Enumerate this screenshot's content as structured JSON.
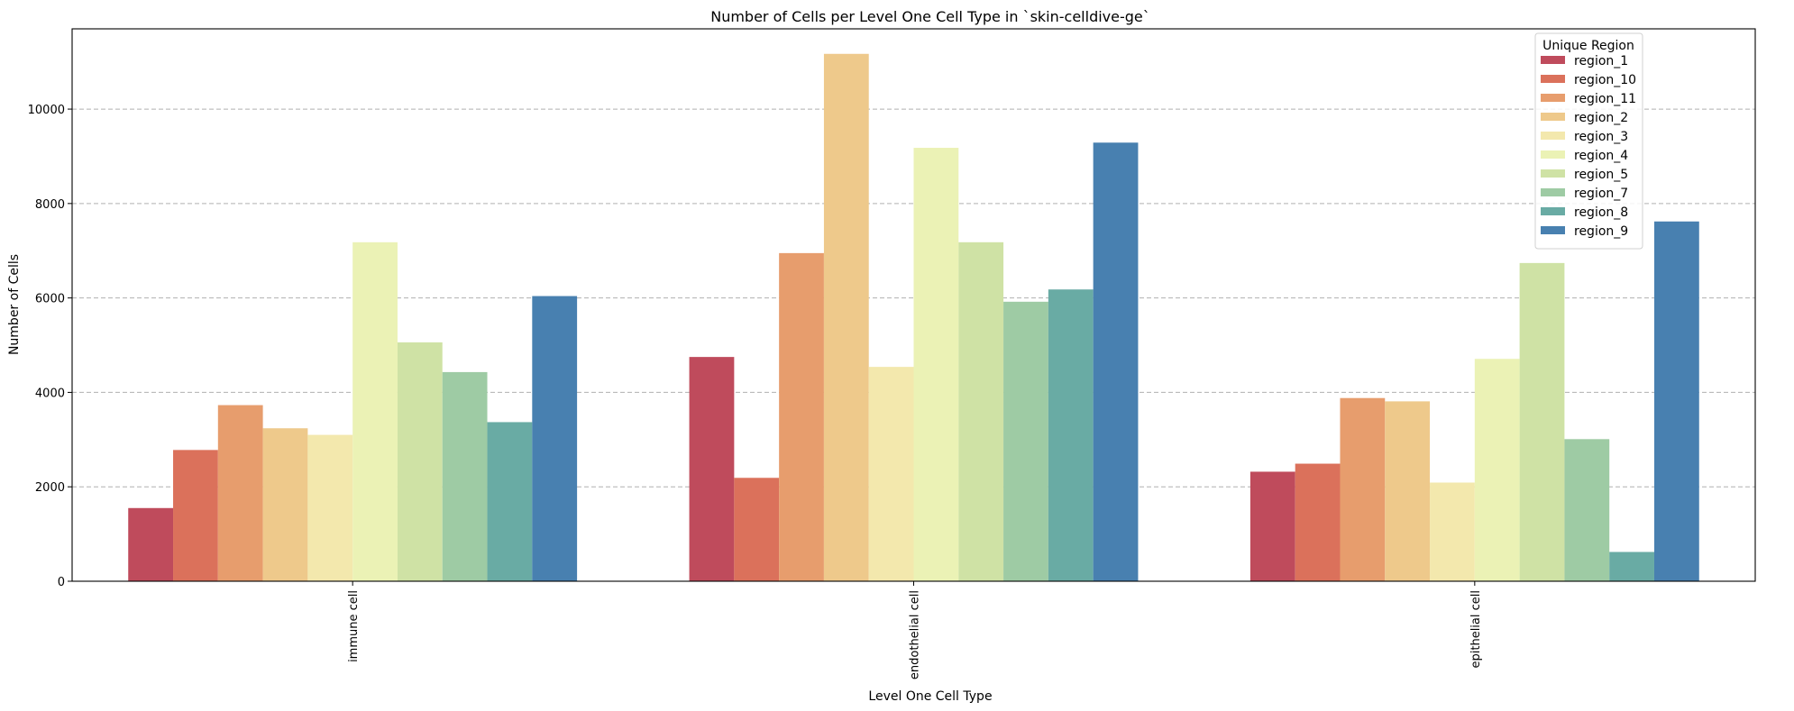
{
  "chart_data": {
    "type": "bar",
    "title": "Number of Cells per Level One Cell Type in `skin-celldive-ge`",
    "xlabel": "Level One Cell Type",
    "ylabel": "Number of Cells",
    "ylim": [
      0,
      11700
    ],
    "yticks": [
      0,
      2000,
      4000,
      6000,
      8000,
      10000
    ],
    "grid": true,
    "legend": {
      "title": "Unique Region",
      "placement": "top-right"
    },
    "categories": [
      "immune cell",
      "endothelial cell",
      "epithelial cell"
    ],
    "series": [
      {
        "name": "region_1",
        "color": "#bf4b5c",
        "values": [
          1550,
          4750,
          2320
        ]
      },
      {
        "name": "region_10",
        "color": "#db715b",
        "values": [
          2780,
          2190,
          2490
        ]
      },
      {
        "name": "region_11",
        "color": "#e79d6d",
        "values": [
          3730,
          6950,
          3880
        ]
      },
      {
        "name": "region_2",
        "color": "#eec98b",
        "values": [
          3240,
          11170,
          3810
        ]
      },
      {
        "name": "region_3",
        "color": "#f3e8ad",
        "values": [
          3100,
          4540,
          2090
        ]
      },
      {
        "name": "region_4",
        "color": "#ebf2b5",
        "values": [
          7180,
          9180,
          4710
        ]
      },
      {
        "name": "region_5",
        "color": "#cfe2a5",
        "values": [
          5060,
          7180,
          6740
        ]
      },
      {
        "name": "region_7",
        "color": "#9ecba4",
        "values": [
          4430,
          5920,
          3010
        ]
      },
      {
        "name": "region_8",
        "color": "#69aba4",
        "values": [
          3370,
          6180,
          620
        ]
      },
      {
        "name": "region_9",
        "color": "#4880b0",
        "values": [
          6040,
          9290,
          7620
        ]
      }
    ]
  }
}
